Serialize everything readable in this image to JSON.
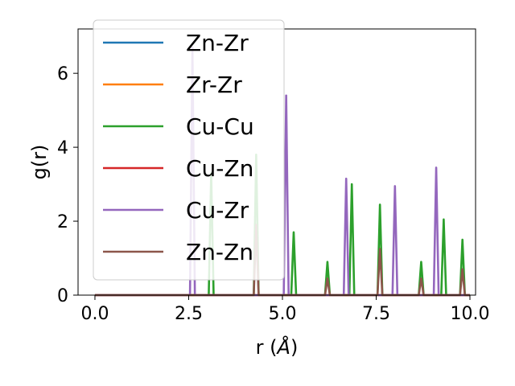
{
  "chart_data": {
    "type": "line",
    "xlabel": "r (Å)",
    "xlabel_main": "r (",
    "xlabel_unit": "Å",
    "xlabel_close": ")",
    "ylabel": "g(r)",
    "xlim": [
      -0.45,
      10.15
    ],
    "ylim": [
      0,
      7.2
    ],
    "xticks": [
      0.0,
      2.5,
      5.0,
      7.5,
      10.0
    ],
    "xtick_labels": [
      "0.0",
      "2.5",
      "5.0",
      "7.5",
      "10.0"
    ],
    "yticks": [
      0,
      2,
      4,
      6
    ],
    "ytick_labels": [
      "0",
      "2",
      "4",
      "6"
    ],
    "grid": false,
    "legend_position": "upper-left",
    "series": [
      {
        "name": "Zn-Zr",
        "color": "#1f77b4",
        "peaks": []
      },
      {
        "name": "Zr-Zr",
        "color": "#ff7f0e",
        "peaks": []
      },
      {
        "name": "Cu-Cu",
        "color": "#2ca02c",
        "peaks": [
          [
            3.1,
            3.3
          ],
          [
            4.3,
            3.8
          ],
          [
            5.3,
            1.7
          ],
          [
            6.2,
            0.9
          ],
          [
            6.85,
            3.0
          ],
          [
            7.6,
            2.45
          ],
          [
            8.7,
            0.9
          ],
          [
            9.3,
            2.05
          ],
          [
            9.8,
            1.5
          ]
        ]
      },
      {
        "name": "Cu-Zn",
        "color": "#d62728",
        "peaks": []
      },
      {
        "name": "Cu-Zr",
        "color": "#9467bd",
        "peaks": [
          [
            2.6,
            6.7
          ],
          [
            5.1,
            5.4
          ],
          [
            6.7,
            3.15
          ],
          [
            8.0,
            2.95
          ],
          [
            9.1,
            3.45
          ]
        ]
      },
      {
        "name": "Zn-Zn",
        "color": "#8c564b",
        "peaks": [
          [
            4.3,
            1.9
          ],
          [
            6.2,
            0.45
          ],
          [
            7.6,
            1.25
          ],
          [
            8.7,
            0.45
          ],
          [
            9.8,
            0.7
          ]
        ]
      }
    ]
  }
}
